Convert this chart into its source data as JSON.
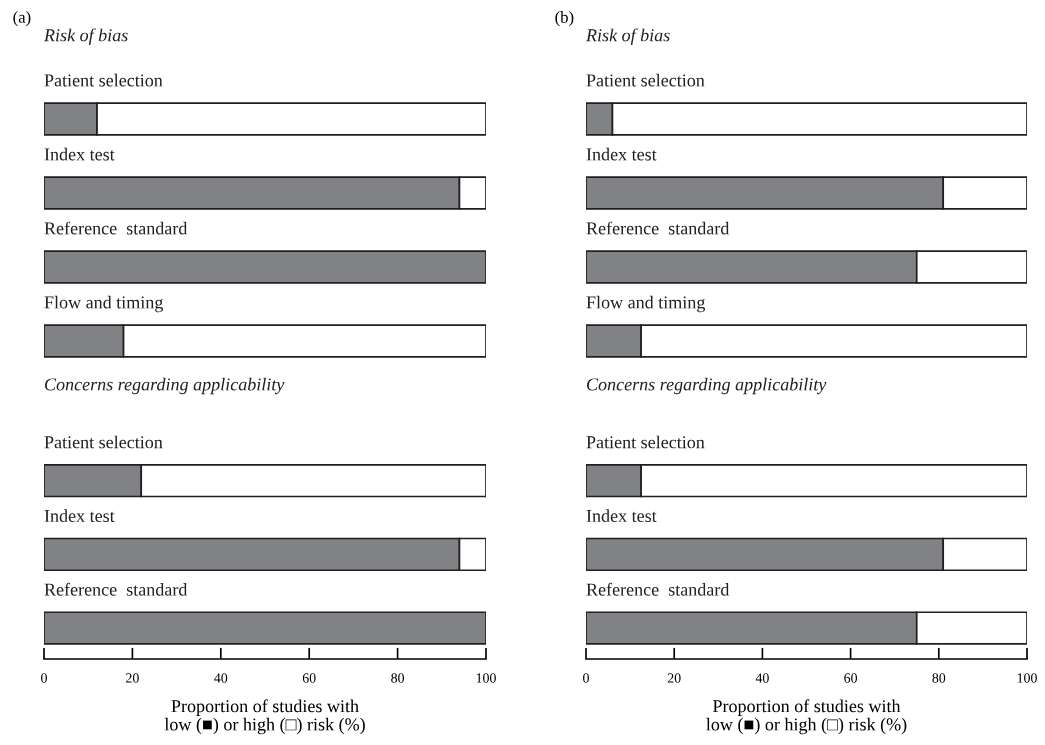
{
  "chart_data": [
    {
      "type": "bar",
      "orientation": "horizontal",
      "stacked": true,
      "title": "Risk of bias",
      "annotations": [
        "(a)"
      ],
      "categories": [
        "Patient selection",
        "Index test",
        "Reference  standard",
        "Flow and timing"
      ],
      "series": [
        {
          "color": "#808285",
          "values": [
            12,
            94,
            100,
            18
          ]
        },
        {
          "color": "#ffffff",
          "values": [
            88,
            6,
            0,
            82
          ]
        }
      ],
      "xlim": [
        0,
        100
      ],
      "tick_labels": "y"
    },
    {
      "type": "bar",
      "orientation": "horizontal",
      "stacked": true,
      "title": "Concerns regarding applicability",
      "categories": [
        "Patient selection",
        "Index test",
        "Reference  standard"
      ],
      "series": [
        {
          "color": "#808285",
          "values": [
            22,
            94,
            100
          ]
        },
        {
          "color": "#ffffff",
          "values": [
            78,
            6,
            0
          ]
        }
      ],
      "xlim": [
        0,
        100
      ],
      "xticks": [
        0,
        20,
        40,
        60,
        80,
        100
      ],
      "xlabel": "Proportion of studies with\nlow (■) or high (□) risk (%)"
    },
    {
      "type": "bar",
      "orientation": "horizontal",
      "stacked": true,
      "title": "Risk of bias",
      "annotations": [
        "(b)"
      ],
      "categories": [
        "Patient selection",
        "Index test",
        "Reference  standard",
        "Flow and timing"
      ],
      "series": [
        {
          "color": "#808285",
          "values": [
            6,
            81,
            75,
            12.5
          ]
        },
        {
          "color": "#ffffff",
          "values": [
            94,
            19,
            25,
            87.5
          ]
        }
      ],
      "xlim": [
        0,
        100
      ],
      "tick_labels": "y"
    },
    {
      "type": "bar",
      "orientation": "horizontal",
      "stacked": true,
      "title": "Concerns regarding applicability",
      "categories": [
        "Patient selection",
        "Index test",
        "Reference  standard"
      ],
      "series": [
        {
          "color": "#808285",
          "values": [
            12.5,
            81,
            75
          ]
        },
        {
          "color": "#ffffff",
          "values": [
            87.5,
            19,
            25
          ]
        }
      ],
      "xlim": [
        0,
        100
      ],
      "xticks": [
        0,
        20,
        40,
        60,
        80,
        100
      ],
      "xlabel": "Proportion of studies with\nlow (■) or high (□) risk (%)"
    }
  ]
}
